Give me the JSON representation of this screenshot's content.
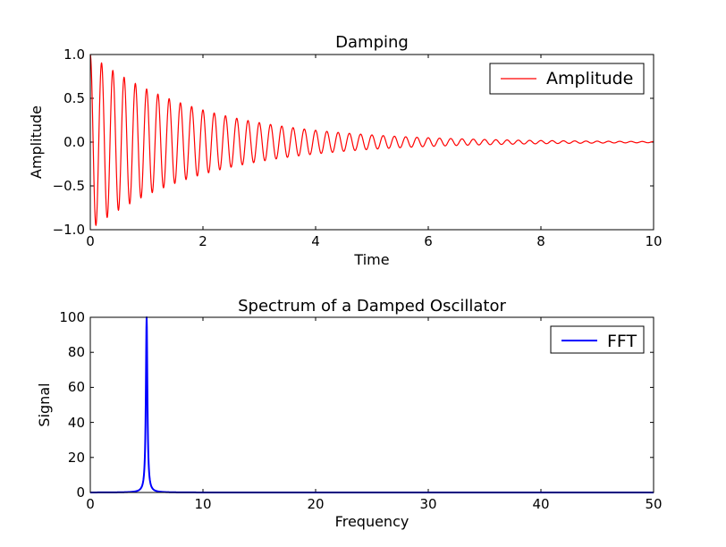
{
  "chart_data": [
    {
      "type": "line",
      "title": "Damping",
      "xlabel": "Time",
      "ylabel": "Amplitude",
      "xlim": [
        0,
        10
      ],
      "ylim": [
        -1.0,
        1.0
      ],
      "xticks": [
        0,
        2,
        4,
        6,
        8,
        10
      ],
      "xtick_labels": [
        "0",
        "2",
        "4",
        "6",
        "8",
        "10"
      ],
      "yticks": [
        -1.0,
        -0.5,
        0.0,
        0.5,
        1.0
      ],
      "ytick_labels": [
        "−1.0",
        "−0.5",
        "0.0",
        "0.5",
        "1.0"
      ],
      "grid": false,
      "legend": "top-right",
      "series": [
        {
          "name": "Amplitude",
          "color": "#ff0000",
          "model": "damped_cosine",
          "frequency": 5,
          "decay_rate": 0.5,
          "peak_value": 1.0,
          "x_range": [
            0,
            10
          ],
          "samples": 2000
        }
      ]
    },
    {
      "type": "line",
      "title": "Spectrum of a Damped Oscillator",
      "xlabel": "Frequency",
      "ylabel": "Signal",
      "xlim": [
        0,
        50
      ],
      "ylim": [
        0,
        100
      ],
      "xticks": [
        0,
        10,
        20,
        30,
        40,
        50
      ],
      "xtick_labels": [
        "0",
        "10",
        "20",
        "30",
        "40",
        "50"
      ],
      "yticks": [
        0,
        20,
        40,
        60,
        80,
        100
      ],
      "ytick_labels": [
        "0",
        "20",
        "40",
        "60",
        "80",
        "100"
      ],
      "grid": false,
      "legend": "top-right",
      "series": [
        {
          "name": "FFT",
          "color": "#0000ff",
          "model": "lorentzian_peak",
          "peak_frequency": 5,
          "peak_value": 100,
          "half_width": 0.08,
          "x_range": [
            0,
            50
          ],
          "samples": 2500
        }
      ]
    }
  ]
}
